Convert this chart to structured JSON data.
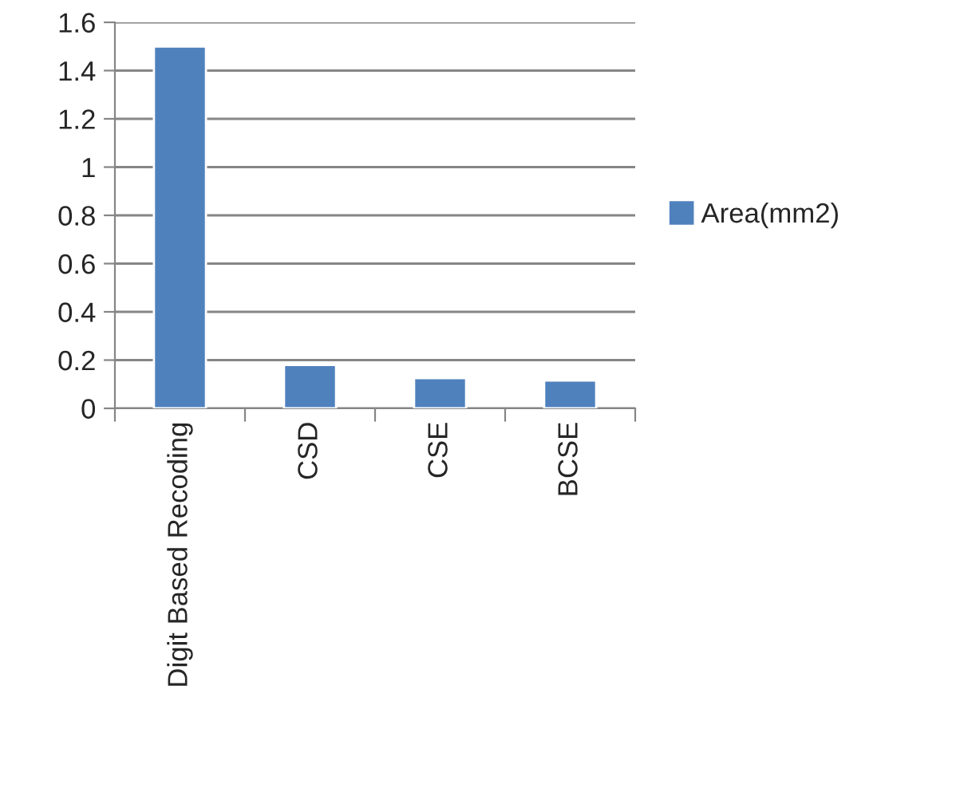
{
  "chart_data": {
    "type": "bar",
    "categories": [
      "Digit Based Recoding",
      "CSD",
      "CSE",
      "BCSE"
    ],
    "series": [
      {
        "name": "Area(mm2)",
        "color": "#4f81bd",
        "values": [
          1.5,
          0.18,
          0.125,
          0.115
        ]
      }
    ],
    "ylim": [
      0,
      1.6
    ],
    "yticks": [
      0,
      {
        "value": 0.2,
        "label": "0.2"
      },
      {
        "value": 0.4,
        "label": "0.4"
      },
      {
        "value": 0.6,
        "label": "0.6"
      },
      {
        "value": 0.8,
        "label": "0.8"
      },
      1,
      {
        "value": 1.2,
        "label": "1.2"
      },
      {
        "value": 1.4,
        "label": "1.4"
      },
      {
        "value": 1.6,
        "label": "1.6"
      }
    ],
    "grid": "y",
    "legend": "right"
  }
}
